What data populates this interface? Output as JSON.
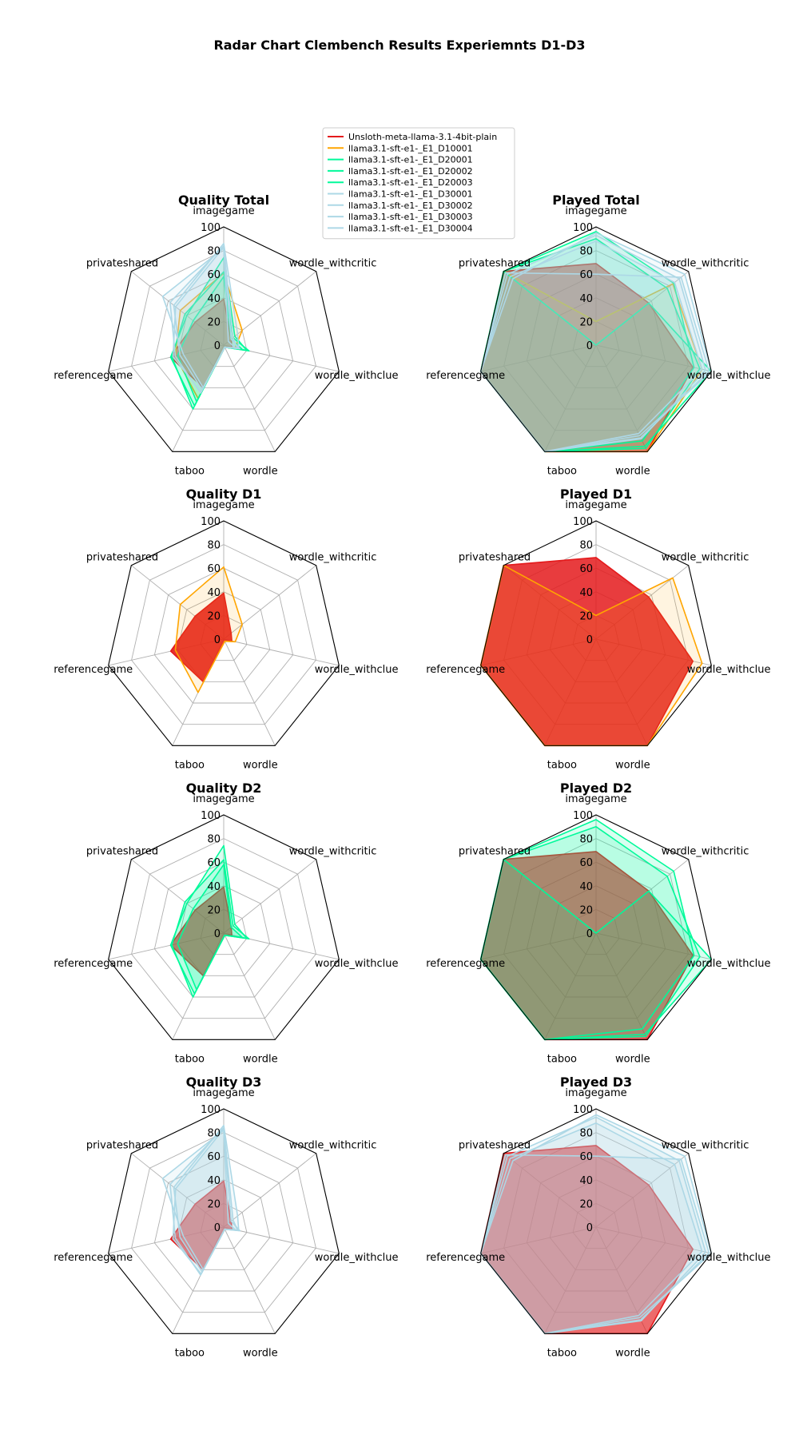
{
  "figure": {
    "title": "Radar Chart Clembench Results Experiemnts D1-D3"
  },
  "chart_data": {
    "type": "radar",
    "categories": [
      "imagegame",
      "wordle_withcritic",
      "wordle_withclue",
      "wordle",
      "taboo",
      "referencegame",
      "privateshared"
    ],
    "rlim": [
      0,
      100
    ],
    "rticks": [
      "0",
      "20",
      "40",
      "60",
      "80",
      "100"
    ],
    "legend": {
      "placement": "top-center",
      "entries": [
        {
          "label": "Unsloth-meta-llama-3.1-4bit-plain",
          "color": "#e41a1c"
        },
        {
          "label": "llama3.1-sft-e1-_E1_D10001",
          "color": "#ffa500"
        },
        {
          "label": "llama3.1-sft-e1-_E1_D20001",
          "color": "#00fa9a"
        },
        {
          "label": "llama3.1-sft-e1-_E1_D20002",
          "color": "#00fa9a"
        },
        {
          "label": "llama3.1-sft-e1-_E1_D20003",
          "color": "#00fa9a"
        },
        {
          "label": "llama3.1-sft-e1-_E1_D30001",
          "color": "#add8e6"
        },
        {
          "label": "llama3.1-sft-e1-_E1_D30002",
          "color": "#add8e6"
        },
        {
          "label": "llama3.1-sft-e1-_E1_D30003",
          "color": "#add8e6"
        },
        {
          "label": "llama3.1-sft-e1-_E1_D30004",
          "color": "#add8e6"
        }
      ]
    },
    "panels": [
      {
        "title": "Quality Total",
        "series": [
          {
            "id": "plain",
            "color": "#e41a1c",
            "fillOpacity": 0.6,
            "values": [
              39,
              8,
              7,
              2,
              40,
              46,
              31
            ]
          },
          {
            "id": "D10001",
            "color": "#ffa500",
            "fillOpacity": 0.12,
            "values": [
              61,
              20,
              10,
              2,
              50,
              42,
              47
            ]
          },
          {
            "id": "D20001",
            "color": "#00fa9a",
            "fillOpacity": 0.12,
            "values": [
              62,
              10,
              22,
              2,
              60,
              45,
              42
            ]
          },
          {
            "id": "D20002",
            "color": "#00fa9a",
            "fillOpacity": 0.12,
            "values": [
              74,
              12,
              20,
              2,
              57,
              46,
              40
            ]
          },
          {
            "id": "D20003",
            "color": "#00fa9a",
            "fillOpacity": 0.12,
            "values": [
              58,
              8,
              16,
              2,
              53,
              40,
              33
            ]
          },
          {
            "id": "D30001",
            "color": "#add8e6",
            "fillOpacity": 0.12,
            "values": [
              84,
              10,
              12,
              2,
              45,
              42,
              58
            ]
          },
          {
            "id": "D30002",
            "color": "#add8e6",
            "fillOpacity": 0.12,
            "values": [
              82,
              5,
              10,
              2,
              40,
              35,
              66
            ]
          },
          {
            "id": "D30003",
            "color": "#add8e6",
            "fillOpacity": 0.12,
            "values": [
              86,
              15,
              13,
              2,
              42,
              38,
              54
            ]
          },
          {
            "id": "D30004",
            "color": "#add8e6",
            "fillOpacity": 0.12,
            "values": [
              83,
              8,
              14,
              2,
              44,
              44,
              52
            ]
          }
        ]
      },
      {
        "title": "Played Total",
        "series": [
          {
            "id": "plain",
            "color": "#e41a1c",
            "fillOpacity": 0.6,
            "values": [
              69,
              57,
              84,
              100,
              100,
              100,
              100
            ]
          },
          {
            "id": "D10001",
            "color": "#ffa500",
            "fillOpacity": 0.12,
            "values": [
              20,
              83,
              92,
              100,
              100,
              100,
              100
            ]
          },
          {
            "id": "D20001",
            "color": "#00fa9a",
            "fillOpacity": 0.12,
            "values": [
              0,
              57,
              100,
              95,
              100,
              100,
              100
            ]
          },
          {
            "id": "D20002",
            "color": "#00fa9a",
            "fillOpacity": 0.12,
            "values": [
              96,
              84,
              85,
              90,
              100,
              100,
              100
            ]
          },
          {
            "id": "D20003",
            "color": "#00fa9a",
            "fillOpacity": 0.12,
            "values": [
              90,
              77,
              90,
              97,
              100,
              100,
              100
            ]
          },
          {
            "id": "D30001",
            "color": "#add8e6",
            "fillOpacity": 0.12,
            "values": [
              95,
              96,
              100,
              85,
              100,
              100,
              90
            ]
          },
          {
            "id": "D30002",
            "color": "#add8e6",
            "fillOpacity": 0.12,
            "values": [
              93,
              90,
              95,
              88,
              100,
              100,
              96
            ]
          },
          {
            "id": "D30003",
            "color": "#add8e6",
            "fillOpacity": 0.12,
            "values": [
              88,
              85,
              92,
              83,
              100,
              100,
              93
            ]
          },
          {
            "id": "D30004",
            "color": "#add8e6",
            "fillOpacity": 0.12,
            "values": [
              60,
              92,
              98,
              87,
              100,
              100,
              98
            ]
          }
        ]
      },
      {
        "title": "Quality D1",
        "series": [
          {
            "id": "plain",
            "color": "#e41a1c",
            "fillOpacity": 0.9,
            "values": [
              39,
              8,
              7,
              2,
              40,
              46,
              31
            ]
          },
          {
            "id": "D10001",
            "color": "#ffa500",
            "fillOpacity": 0.12,
            "values": [
              61,
              20,
              10,
              2,
              50,
              42,
              47
            ]
          }
        ]
      },
      {
        "title": "Played D1",
        "series": [
          {
            "id": "plain",
            "color": "#e41a1c",
            "fillOpacity": 0.85,
            "values": [
              69,
              57,
              84,
              100,
              100,
              100,
              100
            ]
          },
          {
            "id": "D10001",
            "color": "#ffa500",
            "fillOpacity": 0.12,
            "values": [
              20,
              83,
              92,
              100,
              100,
              100,
              100
            ]
          }
        ]
      },
      {
        "title": "Quality D2",
        "series": [
          {
            "id": "plain",
            "color": "#e41a1c",
            "fillOpacity": 0.7,
            "values": [
              39,
              8,
              7,
              2,
              40,
              46,
              31
            ]
          },
          {
            "id": "D20001",
            "color": "#00fa9a",
            "fillOpacity": 0.15,
            "values": [
              62,
              10,
              22,
              2,
              60,
              45,
              42
            ]
          },
          {
            "id": "D20002",
            "color": "#00fa9a",
            "fillOpacity": 0.15,
            "values": [
              74,
              12,
              20,
              2,
              57,
              46,
              40
            ]
          },
          {
            "id": "D20003",
            "color": "#00fa9a",
            "fillOpacity": 0.15,
            "values": [
              58,
              8,
              16,
              2,
              53,
              40,
              33
            ]
          }
        ]
      },
      {
        "title": "Played D2",
        "series": [
          {
            "id": "plain",
            "color": "#e41a1c",
            "fillOpacity": 0.7,
            "values": [
              69,
              57,
              84,
              100,
              100,
              100,
              100
            ]
          },
          {
            "id": "D20001",
            "color": "#00fa9a",
            "fillOpacity": 0.15,
            "values": [
              0,
              57,
              100,
              95,
              100,
              100,
              100
            ]
          },
          {
            "id": "D20002",
            "color": "#00fa9a",
            "fillOpacity": 0.15,
            "values": [
              96,
              84,
              85,
              90,
              100,
              100,
              100
            ]
          },
          {
            "id": "D20003",
            "color": "#00fa9a",
            "fillOpacity": 0.15,
            "values": [
              90,
              77,
              90,
              97,
              100,
              100,
              100
            ]
          }
        ]
      },
      {
        "title": "Quality D3",
        "series": [
          {
            "id": "plain",
            "color": "#e41a1c",
            "fillOpacity": 0.7,
            "values": [
              39,
              8,
              7,
              2,
              40,
              46,
              31
            ]
          },
          {
            "id": "D30001",
            "color": "#add8e6",
            "fillOpacity": 0.15,
            "values": [
              84,
              10,
              12,
              2,
              45,
              42,
              58
            ]
          },
          {
            "id": "D30002",
            "color": "#add8e6",
            "fillOpacity": 0.15,
            "values": [
              82,
              5,
              10,
              2,
              40,
              35,
              66
            ]
          },
          {
            "id": "D30003",
            "color": "#add8e6",
            "fillOpacity": 0.15,
            "values": [
              86,
              15,
              13,
              2,
              42,
              38,
              54
            ]
          },
          {
            "id": "D30004",
            "color": "#add8e6",
            "fillOpacity": 0.15,
            "values": [
              83,
              8,
              14,
              2,
              44,
              44,
              52
            ]
          }
        ]
      },
      {
        "title": "Played D3",
        "series": [
          {
            "id": "plain",
            "color": "#e41a1c",
            "fillOpacity": 0.65,
            "values": [
              69,
              57,
              84,
              100,
              100,
              100,
              100
            ]
          },
          {
            "id": "D30001",
            "color": "#add8e6",
            "fillOpacity": 0.15,
            "values": [
              95,
              96,
              100,
              85,
              100,
              100,
              90
            ]
          },
          {
            "id": "D30002",
            "color": "#add8e6",
            "fillOpacity": 0.15,
            "values": [
              93,
              90,
              95,
              88,
              100,
              100,
              96
            ]
          },
          {
            "id": "D30003",
            "color": "#add8e6",
            "fillOpacity": 0.15,
            "values": [
              88,
              85,
              92,
              83,
              100,
              100,
              93
            ]
          },
          {
            "id": "D30004",
            "color": "#add8e6",
            "fillOpacity": 0.15,
            "values": [
              60,
              92,
              98,
              87,
              100,
              100,
              98
            ]
          }
        ]
      }
    ]
  }
}
